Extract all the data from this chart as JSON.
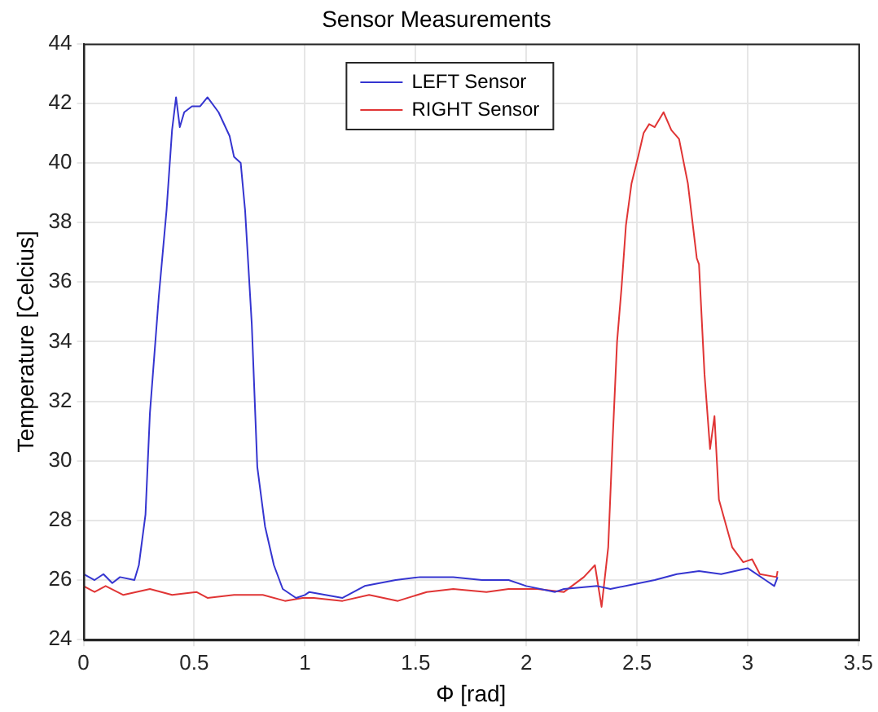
{
  "chart_data": {
    "type": "line",
    "title": "Sensor Measurements",
    "xlabel": "Φ [rad]",
    "ylabel": "Temperature [Celcius]",
    "xlim": [
      0,
      3.5
    ],
    "xticks": [
      0,
      0.5,
      1,
      1.5,
      2,
      2.5,
      3,
      3.5
    ],
    "ylim": [
      24,
      44
    ],
    "yticks": [
      24,
      26,
      28,
      30,
      32,
      34,
      36,
      38,
      40,
      42,
      44
    ],
    "grid": true,
    "legend": "top",
    "marker": "none",
    "line_style": "solid",
    "series": [
      {
        "name": "LEFT Sensor",
        "color": "#3535d0",
        "x": [
          0,
          0.05,
          0.09,
          0.13,
          0.165,
          0.23,
          0.25,
          0.28,
          0.3,
          0.34,
          0.375,
          0.4,
          0.418,
          0.435,
          0.455,
          0.49,
          0.527,
          0.56,
          0.61,
          0.66,
          0.68,
          0.71,
          0.73,
          0.76,
          0.785,
          0.82,
          0.86,
          0.9,
          0.96,
          1.0,
          1.02,
          1.17,
          1.27,
          1.41,
          1.52,
          1.67,
          1.8,
          1.92,
          2.0,
          2.13,
          2.17,
          2.32,
          2.38,
          2.58,
          2.68,
          2.78,
          2.88,
          3.0,
          3.08,
          3.12,
          3.135
        ],
        "values": [
          26.2,
          26.0,
          26.2,
          25.9,
          26.1,
          26.0,
          26.5,
          28.2,
          31.6,
          35.5,
          38.4,
          41.1,
          42.2,
          41.2,
          41.7,
          41.9,
          41.9,
          42.2,
          41.7,
          40.9,
          40.2,
          40.0,
          38.4,
          34.6,
          29.8,
          27.8,
          26.5,
          25.7,
          25.4,
          25.5,
          25.6,
          25.4,
          25.8,
          26.0,
          26.1,
          26.1,
          26.0,
          26.0,
          25.8,
          25.6,
          25.7,
          25.8,
          25.7,
          26.0,
          26.2,
          26.3,
          26.2,
          26.4,
          26.0,
          25.8,
          26.1
        ]
      },
      {
        "name": "RIGHT Sensor",
        "color": "#e03535",
        "x": [
          0,
          0.05,
          0.1,
          0.18,
          0.3,
          0.4,
          0.51,
          0.56,
          0.68,
          0.81,
          0.91,
          0.99,
          1.04,
          1.17,
          1.29,
          1.42,
          1.55,
          1.67,
          1.82,
          1.92,
          2.05,
          2.17,
          2.26,
          2.31,
          2.34,
          2.37,
          2.39,
          2.41,
          2.43,
          2.45,
          2.475,
          2.505,
          2.53,
          2.555,
          2.58,
          2.62,
          2.655,
          2.69,
          2.73,
          2.77,
          2.78,
          2.805,
          2.83,
          2.85,
          2.87,
          2.93,
          2.98,
          3.02,
          3.055,
          3.13,
          3.135
        ],
        "values": [
          25.8,
          25.6,
          25.8,
          25.5,
          25.7,
          25.5,
          25.6,
          25.4,
          25.5,
          25.5,
          25.3,
          25.4,
          25.4,
          25.3,
          25.5,
          25.3,
          25.6,
          25.7,
          25.6,
          25.7,
          25.7,
          25.6,
          26.1,
          26.5,
          25.1,
          27.1,
          30.7,
          34.0,
          35.8,
          37.9,
          39.3,
          40.2,
          41.0,
          41.3,
          41.2,
          41.7,
          41.1,
          40.8,
          39.3,
          36.8,
          36.6,
          32.9,
          30.4,
          31.5,
          28.7,
          27.1,
          26.6,
          26.7,
          26.2,
          26.1,
          26.3
        ]
      }
    ]
  }
}
